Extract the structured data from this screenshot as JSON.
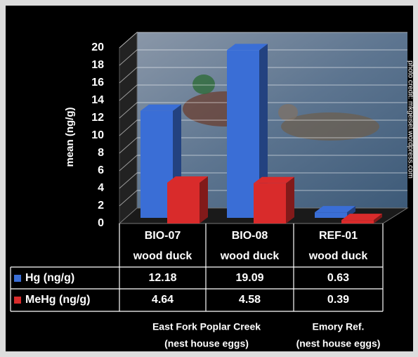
{
  "chart_data": {
    "type": "bar3d",
    "y_label": "mean (ng/g)",
    "categories": [
      [
        "BIO-07",
        "wood duck"
      ],
      [
        "BIO-08",
        "wood duck"
      ],
      [
        "REF-01",
        "wood duck"
      ]
    ],
    "series": [
      {
        "name": "Hg (ng/g)",
        "color": "#3a6ed6",
        "values": [
          12.18,
          19.09,
          0.63
        ]
      },
      {
        "name": "MeHg (ng/g)",
        "color": "#d92b2b",
        "values": [
          4.64,
          4.58,
          0.39
        ]
      }
    ],
    "ylim": [
      0,
      20
    ],
    "yticks": [
      0,
      2,
      4,
      6,
      8,
      10,
      12,
      14,
      16,
      18,
      20
    ],
    "grid": true,
    "groups": [
      [
        "East Fork Poplar Creek",
        "(nest house eggs)"
      ],
      [
        "Emory Ref.",
        "(nest house eggs)"
      ]
    ],
    "photo_credit": "photo credit: mkgeisel.wordpress.com"
  }
}
